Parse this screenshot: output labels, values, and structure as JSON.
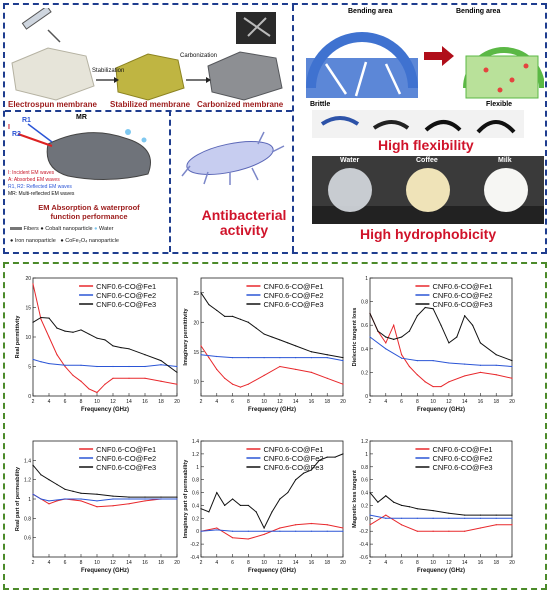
{
  "colors": {
    "fe1": "#e8282c",
    "fe2": "#2b55d6",
    "fe3": "#111111",
    "blue_border": "#1f3d8f",
    "green_border": "#4b8a2a",
    "red_text": "#c8182a"
  },
  "top_panel": {
    "steps": [
      "Electrospun membrane",
      "Stabilized membrane",
      "Carbonized membrane"
    ],
    "arrow_labels": [
      "Stabilization",
      "Carbonization"
    ],
    "bending": {
      "label_left": "Bending area",
      "label_right": "Bending area"
    },
    "flex": {
      "brittle": "Brittle",
      "flexible": "Flexible",
      "headline": "High flexibility"
    },
    "mechanism": {
      "mr": "MR",
      "r1": "R1",
      "r2": "R2",
      "i": "I",
      "legend": [
        "I: Incident EM waves",
        "A: Absorbed EM waves",
        "R1, R2: Reflected EM waves",
        "MR: Multi-reflected EM waves"
      ],
      "title_line1": "EM Absorption & waterproof",
      "title_line2": "function performance",
      "key_fibers": "Fibers",
      "key_cobalt": "Cobalt nanoparticle",
      "key_water": "Water",
      "key_iron": "Iron nanoparticle",
      "key_cofe": "CoFe₂O₄ nanoparticle"
    },
    "antibacterial": {
      "line1": "Antibacterial",
      "line2": "activity"
    },
    "droplets": {
      "labels": [
        "Water",
        "Coffee",
        "Milk"
      ],
      "headline": "High hydrophobicity"
    }
  },
  "chart_data": [
    {
      "type": "line",
      "ylabel": "Real permittivity",
      "xlabel": "Frequency (GHz)",
      "xlim": [
        2,
        20
      ],
      "ylim": [
        0,
        20
      ],
      "x_ticks": [
        2,
        4,
        6,
        8,
        10,
        12,
        14,
        16,
        18,
        20
      ],
      "y_ticks": [
        0,
        5,
        10,
        15,
        20
      ],
      "series": [
        {
          "name": "CNF0.6-CO@Fe1",
          "x": [
            2,
            3,
            4,
            5,
            6,
            7,
            8,
            9,
            10,
            11,
            12,
            14,
            16,
            18,
            20
          ],
          "values": [
            19,
            13,
            10,
            7,
            5,
            3.5,
            2.5,
            1.2,
            0.6,
            2,
            3,
            3,
            3,
            2.5,
            2
          ]
        },
        {
          "name": "CNF0.6-CO@Fe2",
          "x": [
            2,
            3,
            4,
            6,
            8,
            10,
            12,
            14,
            16,
            18,
            20
          ],
          "values": [
            6.2,
            5.8,
            5.5,
            5.2,
            5.2,
            5,
            5,
            5,
            5,
            5.3,
            5
          ]
        },
        {
          "name": "CNF0.6-CO@Fe3",
          "x": [
            2,
            3,
            4,
            5,
            6,
            7,
            8,
            9,
            10,
            11,
            12,
            13,
            14,
            16,
            18,
            20
          ],
          "values": [
            12.5,
            13.3,
            13.2,
            11.5,
            11,
            10.8,
            11.2,
            10.5,
            9.8,
            9.5,
            8.5,
            8.2,
            8,
            7,
            6,
            4
          ]
        }
      ]
    },
    {
      "type": "line",
      "ylabel": "Imaginary permittivity",
      "xlabel": "Frequency (GHz)",
      "xlim": [
        2,
        20
      ],
      "ylim": [
        7.5,
        27.5
      ],
      "x_ticks": [
        2,
        4,
        6,
        8,
        10,
        12,
        14,
        16,
        18,
        20
      ],
      "y_ticks": [
        10,
        15,
        20,
        25
      ],
      "series": [
        {
          "name": "CNF0.6-CO@Fe1",
          "x": [
            2,
            3,
            4,
            5,
            6,
            7,
            8,
            10,
            12,
            14,
            16,
            18,
            20
          ],
          "values": [
            16,
            14,
            12,
            10.5,
            9.5,
            9,
            9.5,
            11,
            12.5,
            12,
            11.5,
            10.5,
            9.5
          ]
        },
        {
          "name": "CNF0.6-CO@Fe2",
          "x": [
            2,
            4,
            6,
            8,
            10,
            12,
            14,
            16,
            18,
            20
          ],
          "values": [
            14.5,
            14.2,
            14,
            14,
            14,
            14,
            14,
            14,
            14,
            13.5
          ]
        },
        {
          "name": "CNF0.6-CO@Fe3",
          "x": [
            2,
            3,
            4,
            5,
            6,
            7,
            8,
            9,
            10,
            11,
            12,
            13,
            14,
            16,
            18,
            20
          ],
          "values": [
            25,
            23,
            22,
            21,
            21,
            20.5,
            20,
            19,
            18,
            17.5,
            17,
            16.5,
            16,
            15,
            14.5,
            14
          ]
        }
      ]
    },
    {
      "type": "line",
      "ylabel": "Dielectric tangent loss",
      "xlabel": "Frequency (GHz)",
      "xlim": [
        2,
        20
      ],
      "ylim": [
        0,
        1
      ],
      "x_ticks": [
        2,
        4,
        6,
        8,
        10,
        12,
        14,
        16,
        18,
        20
      ],
      "y_ticks": [
        0,
        0.2,
        0.4,
        0.6,
        0.8,
        1.0
      ],
      "series": [
        {
          "name": "CNF0.6-CO@Fe1",
          "x": [
            2,
            3,
            4,
            5,
            6,
            7,
            8,
            9,
            10,
            11,
            12,
            14,
            16,
            18,
            20
          ],
          "values": [
            0.7,
            0.55,
            0.45,
            0.6,
            0.35,
            0.25,
            0.18,
            0.12,
            0.08,
            0.08,
            0.12,
            0.17,
            0.2,
            0.18,
            0.15
          ]
        },
        {
          "name": "CNF0.6-CO@Fe2",
          "x": [
            2,
            4,
            6,
            8,
            10,
            12,
            14,
            16,
            18,
            20
          ],
          "values": [
            0.5,
            0.4,
            0.32,
            0.3,
            0.3,
            0.28,
            0.27,
            0.26,
            0.26,
            0.25
          ]
        },
        {
          "name": "CNF0.6-CO@Fe3",
          "x": [
            2,
            3,
            4,
            5,
            6,
            7,
            8,
            9,
            10,
            11,
            12,
            13,
            14,
            15,
            16,
            18,
            20
          ],
          "values": [
            0.7,
            0.55,
            0.5,
            0.48,
            0.5,
            0.55,
            0.68,
            0.75,
            0.74,
            0.6,
            0.45,
            0.5,
            0.68,
            0.6,
            0.45,
            0.35,
            0.3
          ]
        }
      ]
    },
    {
      "type": "line",
      "ylabel": "Real part of permeability",
      "xlabel": "Frequency (GHz)",
      "xlim": [
        2,
        20
      ],
      "ylim": [
        0.4,
        1.6
      ],
      "x_ticks": [
        2,
        4,
        6,
        8,
        10,
        12,
        14,
        16,
        18,
        20
      ],
      "y_ticks": [
        0.6,
        0.8,
        1.0,
        1.2,
        1.4
      ],
      "series": [
        {
          "name": "CNF0.6-CO@Fe1",
          "x": [
            2,
            3,
            4,
            5,
            6,
            8,
            10,
            12,
            14,
            16,
            18,
            20
          ],
          "values": [
            1.05,
            1.0,
            0.95,
            0.98,
            1.0,
            0.98,
            0.92,
            0.93,
            0.95,
            0.98,
            1.0,
            1.0
          ]
        },
        {
          "name": "CNF0.6-CO@Fe2",
          "x": [
            2,
            3,
            4,
            6,
            8,
            10,
            12,
            14,
            16,
            18,
            20
          ],
          "values": [
            1.05,
            1.0,
            0.98,
            1.0,
            1.0,
            0.98,
            1.0,
            1.0,
            1.0,
            1.0,
            1.0
          ]
        },
        {
          "name": "CNF0.6-CO@Fe3",
          "x": [
            2,
            3,
            4,
            5,
            6,
            7,
            8,
            10,
            12,
            14,
            16,
            18,
            20
          ],
          "values": [
            1.35,
            1.25,
            1.2,
            1.15,
            1.1,
            1.08,
            1.06,
            1.05,
            1.03,
            1.02,
            1.02,
            1.02,
            1.02
          ]
        }
      ]
    },
    {
      "type": "line",
      "ylabel": "Imaginary part of permeability",
      "xlabel": "Frequency (GHz)",
      "xlim": [
        2,
        20
      ],
      "ylim": [
        -0.4,
        1.4
      ],
      "x_ticks": [
        2,
        4,
        6,
        8,
        10,
        12,
        14,
        16,
        18,
        20
      ],
      "y_ticks": [
        -0.4,
        -0.2,
        0.0,
        0.2,
        0.4,
        0.6,
        0.8,
        1.0,
        1.2,
        1.4
      ],
      "series": [
        {
          "name": "CNF0.6-CO@Fe1",
          "x": [
            2,
            4,
            6,
            8,
            10,
            12,
            14,
            16,
            18,
            20
          ],
          "values": [
            0.0,
            0.05,
            -0.1,
            -0.12,
            -0.05,
            0.05,
            0.1,
            0.12,
            0.1,
            0.05
          ]
        },
        {
          "name": "CNF0.6-CO@Fe2",
          "x": [
            2,
            4,
            6,
            8,
            10,
            12,
            14,
            16,
            18,
            20
          ],
          "values": [
            0.0,
            0.02,
            0.0,
            0.0,
            0.0,
            0.0,
            0.0,
            0.0,
            0.0,
            0.0
          ]
        },
        {
          "name": "CNF0.6-CO@Fe3",
          "x": [
            2,
            3,
            4,
            5,
            6,
            7,
            8,
            9,
            10,
            11,
            12,
            13,
            14,
            15,
            16,
            17,
            18,
            19,
            20
          ],
          "values": [
            0.35,
            0.3,
            0.6,
            0.4,
            0.5,
            0.4,
            0.4,
            0.3,
            0.05,
            0.3,
            0.5,
            0.6,
            0.8,
            0.9,
            0.95,
            1.1,
            1.15,
            1.15,
            1.2
          ]
        }
      ]
    },
    {
      "type": "line",
      "ylabel": "Magnetic loss tangent",
      "xlabel": "Frequency (GHz)",
      "xlim": [
        2,
        20
      ],
      "ylim": [
        -0.6,
        1.2
      ],
      "x_ticks": [
        2,
        4,
        6,
        8,
        10,
        12,
        14,
        16,
        18,
        20
      ],
      "y_ticks": [
        -0.6,
        -0.4,
        -0.2,
        0.0,
        0.2,
        0.4,
        0.6,
        0.8,
        1.0,
        1.2
      ],
      "series": [
        {
          "name": "CNF0.6-CO@Fe1",
          "x": [
            2,
            4,
            6,
            8,
            10,
            12,
            14,
            16,
            18,
            20
          ],
          "values": [
            -0.1,
            0.05,
            -0.1,
            -0.2,
            -0.2,
            -0.2,
            -0.2,
            -0.15,
            -0.1,
            -0.1
          ]
        },
        {
          "name": "CNF0.6-CO@Fe2",
          "x": [
            2,
            4,
            6,
            8,
            10,
            12,
            14,
            16,
            18,
            20
          ],
          "values": [
            0.05,
            0.0,
            0.0,
            0.0,
            0.0,
            0.0,
            0.0,
            0.0,
            0.0,
            0.0
          ]
        },
        {
          "name": "CNF0.6-CO@Fe3",
          "x": [
            2,
            3,
            4,
            5,
            6,
            7,
            8,
            10,
            12,
            14,
            16,
            18,
            20
          ],
          "values": [
            0.4,
            0.25,
            0.35,
            0.25,
            0.2,
            0.18,
            0.15,
            0.12,
            0.08,
            0.05,
            0.05,
            0.05,
            0.05
          ]
        }
      ]
    }
  ]
}
